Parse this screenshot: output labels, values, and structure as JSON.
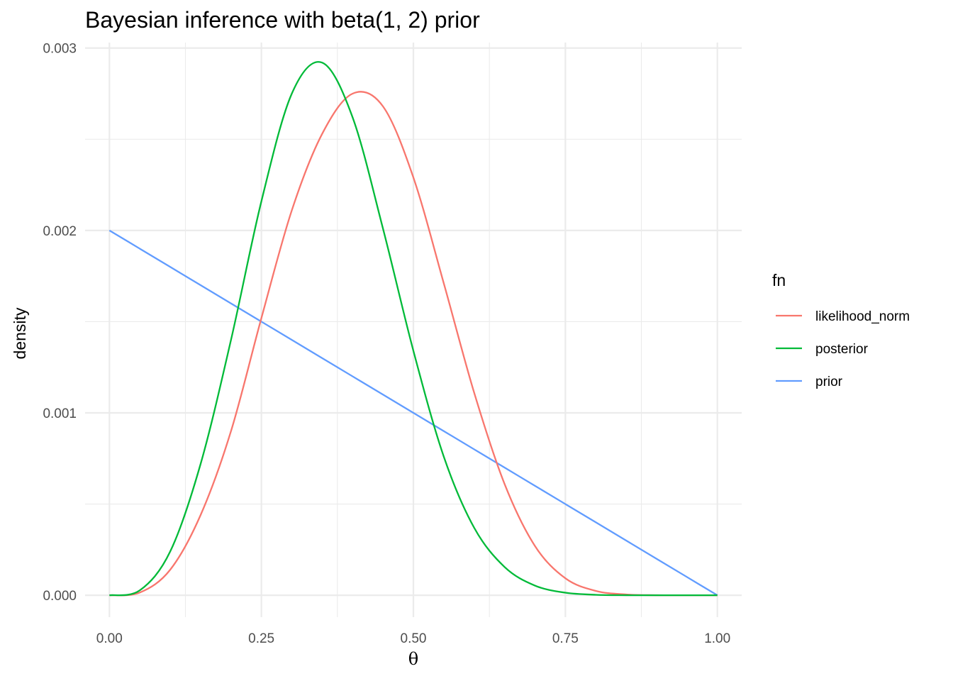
{
  "chart_data": {
    "type": "line",
    "title": "Bayesian inference with beta(1, 2) prior",
    "xlabel": "θ",
    "ylabel": "density",
    "xlim": [
      -0.04,
      1.04
    ],
    "ylim": [
      -0.00012,
      0.00303
    ],
    "x_ticks": [
      0.0,
      0.25,
      0.5,
      0.75,
      1.0
    ],
    "x_tick_labels": [
      "0.00",
      "0.25",
      "0.50",
      "0.75",
      "1.00"
    ],
    "y_ticks": [
      0.0,
      0.001,
      0.002,
      0.003
    ],
    "y_tick_labels": [
      "0.000",
      "0.001",
      "0.002",
      "0.003"
    ],
    "grid": true,
    "legend": {
      "title": "fn",
      "position": "right"
    },
    "x": [
      0.0,
      0.05,
      0.1,
      0.15,
      0.2,
      0.25,
      0.3,
      0.35,
      0.4,
      0.45,
      0.5,
      0.55,
      0.6,
      0.65,
      0.7,
      0.75,
      0.8,
      0.85,
      0.9,
      0.95,
      1.0
    ],
    "series": [
      {
        "name": "likelihood_norm",
        "color": "#F8766D",
        "values": [
          0.0,
          1.5e-05,
          0.00014,
          0.00044,
          0.0009,
          0.00152,
          0.00211,
          0.00253,
          0.00275,
          0.00268,
          0.00229,
          0.00171,
          0.00111,
          0.00061,
          0.00027,
          9.3e-05,
          2.4e-05,
          4.2e-06,
          4e-07,
          0.0,
          0.0
        ]
      },
      {
        "name": "posterior",
        "color": "#00BA38",
        "values": [
          0.0,
          2.7e-05,
          0.00024,
          0.00072,
          0.0014,
          0.00216,
          0.00275,
          0.00292,
          0.00262,
          0.00201,
          0.00134,
          0.00076,
          0.00037,
          0.000155,
          5.3e-05,
          1.4e-05,
          2.6e-06,
          3e-07,
          0.0,
          0.0,
          0.0
        ]
      },
      {
        "name": "prior",
        "color": "#619CFF",
        "values": [
          0.002,
          0.0019,
          0.0018,
          0.0017,
          0.0016,
          0.0015,
          0.0014,
          0.0013,
          0.0012,
          0.0011,
          0.001,
          0.0009,
          0.0008,
          0.0007,
          0.0006,
          0.0005,
          0.0004,
          0.0003,
          0.0002,
          0.0001,
          0.0
        ]
      }
    ]
  }
}
